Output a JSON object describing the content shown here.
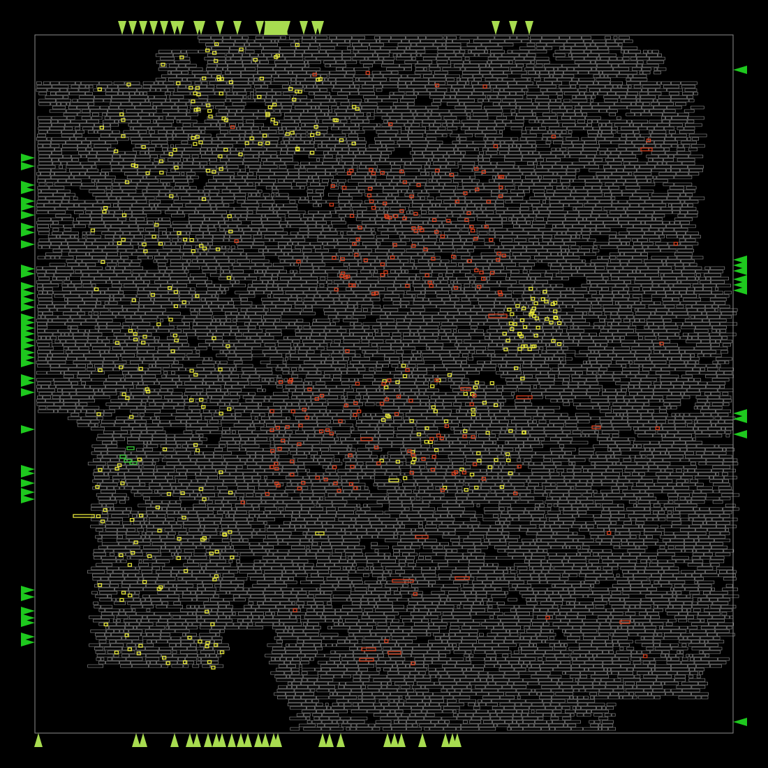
{
  "colors": {
    "background": "#000000",
    "die_outline": "#8c8c8c",
    "cell_outline": "#9a9a9a",
    "highlight_yellow": "#e8e83a",
    "highlight_red": "#d8401e",
    "highlight_green": "#3cd23c",
    "pin_lime": "#a8dc50",
    "pin_green": "#1ec81e"
  },
  "legend": {
    "highlight_yellow": "highlighted-cell-yellow",
    "highlight_red": "highlighted-cell-red",
    "highlight_green": "highlighted-cell-green",
    "pin_lime": "io-pin-lime",
    "pin_green": "io-pin-green"
  }
}
